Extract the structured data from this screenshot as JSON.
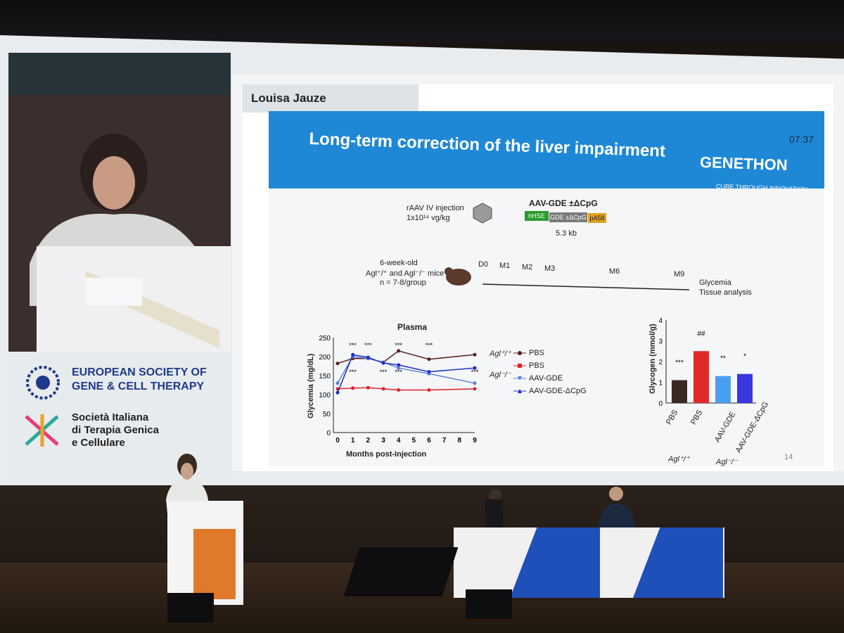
{
  "speaker_tab": {
    "name": "Louisa Jauze"
  },
  "slide": {
    "title": "Long-term correction of the liver impairment",
    "timer": "07:37",
    "brand": "GENETHON",
    "brand_tagline": "CURE THROUGH INNOVATION",
    "page_number": "14",
    "injection": "rAAV IV injection",
    "dose": "1x10¹⁴ vg/kg",
    "construct": "AAV-GDE ±ΔCpG",
    "construct_parts": [
      "hHSE",
      "GDE ±ΔCpG",
      "pA58"
    ],
    "construct_size": "5.3 kb",
    "mice": [
      "6-week-old",
      "Agl⁺/⁺ and Agl⁻/⁻ mice",
      "n = 7-8/group"
    ],
    "timepoints": [
      "D0",
      "M1",
      "M2",
      "M3",
      "M6",
      "M9"
    ],
    "endpoints": [
      "Glycemia",
      "Tissue analysis"
    ],
    "plasma_title": "Plasma",
    "legend_groups": [
      "Agl⁺/⁺",
      "Agl⁻/⁻"
    ],
    "bar_group_labels": [
      "Agl⁺/⁺",
      "Agl⁻/⁻"
    ]
  },
  "chart_data": [
    {
      "type": "line",
      "title": "Plasma",
      "xlabel": "Months post-Injection",
      "ylabel": "Glycemia (mg/dL)",
      "x": [
        0,
        1,
        2,
        3,
        4,
        5,
        6,
        7,
        8,
        9
      ],
      "xticks": [
        "0",
        "1",
        "2",
        "3",
        "4",
        "5",
        "6",
        "7",
        "8",
        "9"
      ],
      "ylim": [
        0,
        250
      ],
      "yticks": [
        "0",
        "50",
        "100",
        "150",
        "200",
        "250"
      ],
      "series": [
        {
          "name": "PBS",
          "group": "Agl⁺/⁺",
          "color": "#5a1e1e",
          "points": [
            [
              0,
              182
            ],
            [
              1,
              195
            ],
            [
              2,
              195
            ],
            [
              3,
              185
            ],
            [
              4,
              215
            ],
            [
              6,
              193
            ],
            [
              9,
              205
            ]
          ]
        },
        {
          "name": "PBS",
          "group": "Agl⁻/⁻",
          "color": "#e0202a",
          "points": [
            [
              0,
              115
            ],
            [
              1,
              117
            ],
            [
              2,
              118
            ],
            [
              3,
              115
            ],
            [
              4,
              112
            ],
            [
              6,
              112
            ],
            [
              9,
              115
            ]
          ]
        },
        {
          "name": "AAV-GDE",
          "group": "Agl⁻/⁻",
          "color": "#5a7fd8",
          "points": [
            [
              0,
              130
            ],
            [
              1,
              200
            ],
            [
              2,
              195
            ],
            [
              3,
              185
            ],
            [
              4,
              170
            ],
            [
              6,
              155
            ],
            [
              9,
              130
            ]
          ]
        },
        {
          "name": "AAV-GDE-ΔCpG",
          "group": "Agl⁻/⁻",
          "color": "#1a30c8",
          "points": [
            [
              0,
              105
            ],
            [
              1,
              205
            ],
            [
              2,
              198
            ],
            [
              3,
              183
            ],
            [
              4,
              178
            ],
            [
              6,
              160
            ],
            [
              9,
              170
            ]
          ]
        }
      ],
      "annotations": [
        "***",
        "***",
        "***",
        "***",
        "***",
        "***",
        "***",
        "***"
      ]
    },
    {
      "type": "bar",
      "ylabel": "Glycogen (mmol/g)",
      "ylim": [
        0,
        4
      ],
      "yticks": [
        "0",
        "1",
        "2",
        "3",
        "4"
      ],
      "categories": [
        "PBS",
        "PBS",
        "AAV-GDE",
        "AAV-GDE-ΔCpG"
      ],
      "values": [
        1.1,
        2.5,
        1.3,
        1.4
      ],
      "colors": [
        "#3a2a24",
        "#e02a2a",
        "#4a9ef0",
        "#3a36e0"
      ],
      "annotations": [
        "***",
        "##",
        "**",
        "*"
      ]
    }
  ],
  "left_panel": {
    "society_en": [
      "EUROPEAN SOCIETY OF",
      "GENE & CELL THERAPY"
    ],
    "society_it": [
      "Società Italiana",
      "di Terapia Genica",
      "e Cellulare"
    ]
  }
}
